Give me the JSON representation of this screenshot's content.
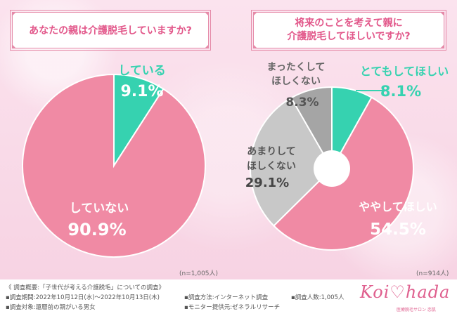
{
  "colors": {
    "pink": "#f08aa4",
    "teal": "#36d2b0",
    "lightgray": "#c8c8c8",
    "darkgray": "#a5a5a5",
    "accent": "#e2578a"
  },
  "left_chart": {
    "title": "あなたの親は介護脱毛していますか?",
    "n_note": "(n=1,005人)"
  },
  "right_chart": {
    "title_line1": "将来のことを考えて親に",
    "title_line2": "介護脱毛してほしいですか?",
    "n_note": "(n=914人)"
  },
  "chart_data": [
    {
      "type": "pie",
      "title": "あなたの親は介護脱毛していますか?",
      "slices": [
        {
          "label": "している",
          "value": 9.1,
          "display": "9.1%",
          "color": "#36d2b0"
        },
        {
          "label": "していない",
          "value": 90.9,
          "display": "90.9%",
          "color": "#f08aa4"
        }
      ]
    },
    {
      "type": "pie",
      "subtype": "donut",
      "title": "将来のことを考えて親に介護脱毛してほしいですか?",
      "slices": [
        {
          "label": "とてもしてほしい",
          "value": 8.1,
          "display": "8.1%",
          "color": "#36d2b0"
        },
        {
          "label": "ややしてほしい",
          "value": 54.5,
          "display": "54.5%",
          "color": "#f08aa4"
        },
        {
          "label": "あまりしてほしくない",
          "value": 29.1,
          "display": "29.1%",
          "color": "#c8c8c8"
        },
        {
          "label": "まったくしてほしくない",
          "value": 8.3,
          "display": "8.3%",
          "color": "#a5a5a5"
        }
      ]
    }
  ],
  "labels": {
    "left_teal_1": "している",
    "left_pink_1": "していない",
    "right_teal_1": "とてもしてほしい",
    "right_pink_1": "ややしてほしい",
    "right_light_1": "あまりして",
    "right_light_2": "ほしくない",
    "right_dark_1": "まったくして",
    "right_dark_2": "ほしくない"
  },
  "footer": {
    "overview": "《 調査概要:「子世代が考える介護脱毛」についての調査》",
    "period": "▪調査期間:2022年10月12日(水)〜2022年10月13日(木)",
    "target": "▪調査対象:還暦前の親がいる男女",
    "method": "▪調査方法:インターネット調査",
    "count": "▪調査人数:1,005人",
    "provider": "▪モニター提供元:ゼネラルリサーチ"
  },
  "logo": {
    "word": "Koi♡hada",
    "sub": "医療脱毛サロン 恋肌"
  }
}
